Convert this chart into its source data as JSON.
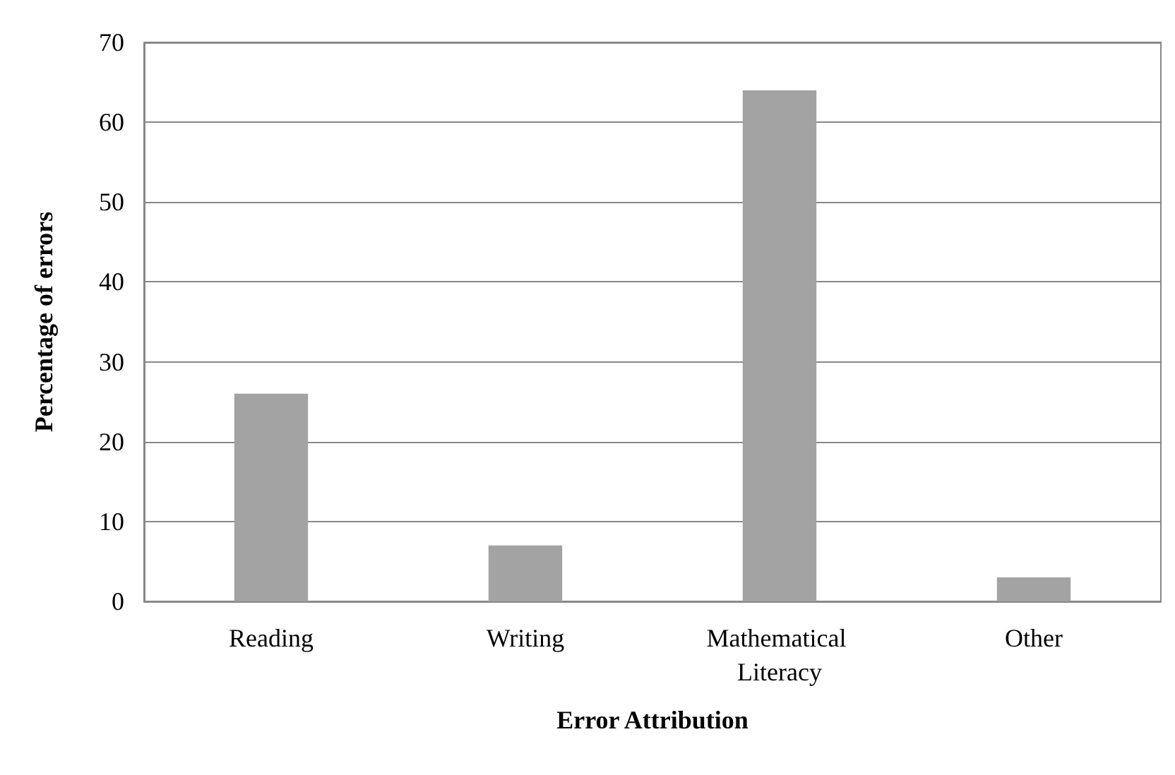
{
  "chart_data": {
    "type": "bar",
    "xlabel": "Error Attribution",
    "ylabel": "Percentage of errors",
    "categories": [
      "Reading",
      "Writing",
      "Mathematical Literacy",
      "Other"
    ],
    "values": [
      26,
      7,
      64,
      3
    ],
    "color": "#a3a3a3",
    "ylim": [
      0,
      70
    ],
    "yticks": [
      0,
      10,
      20,
      30,
      40,
      50,
      60,
      70
    ],
    "grid": "y"
  }
}
